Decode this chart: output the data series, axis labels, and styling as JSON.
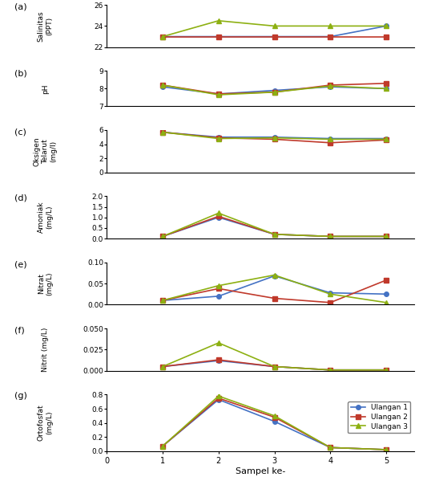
{
  "x": [
    1,
    2,
    3,
    4,
    5
  ],
  "salinitas": {
    "u1": [
      23,
      23,
      23,
      23,
      24
    ],
    "u2": [
      23,
      23,
      23,
      23,
      23
    ],
    "u3": [
      23,
      24.5,
      24,
      24,
      24
    ]
  },
  "pH": {
    "u1": [
      8.1,
      7.7,
      7.9,
      8.1,
      8.0
    ],
    "u2": [
      8.2,
      7.7,
      7.8,
      8.2,
      8.3
    ],
    "u3": [
      8.2,
      7.65,
      7.8,
      8.15,
      8.0
    ]
  },
  "oksigen": {
    "u1": [
      5.7,
      5.0,
      5.0,
      4.8,
      4.8
    ],
    "u2": [
      5.7,
      4.9,
      4.7,
      4.2,
      4.6
    ],
    "u3": [
      5.7,
      4.8,
      4.9,
      4.7,
      4.7
    ]
  },
  "amoniak": {
    "u1": [
      0.1,
      1.0,
      0.2,
      0.1,
      0.1
    ],
    "u2": [
      0.1,
      1.05,
      0.2,
      0.1,
      0.1
    ],
    "u3": [
      0.1,
      1.2,
      0.2,
      0.1,
      0.1
    ]
  },
  "nitrat": {
    "u1": [
      0.01,
      0.02,
      0.068,
      0.028,
      0.025
    ],
    "u2": [
      0.01,
      0.038,
      0.015,
      0.005,
      0.058
    ],
    "u3": [
      0.01,
      0.045,
      0.07,
      0.025,
      0.005
    ]
  },
  "nitrit": {
    "u1": [
      0.005,
      0.012,
      0.005,
      0.001,
      0.001
    ],
    "u2": [
      0.005,
      0.013,
      0.005,
      0.001,
      0.001
    ],
    "u3": [
      0.005,
      0.033,
      0.005,
      0.001,
      0.001
    ]
  },
  "ortofosfat": {
    "u1": [
      0.07,
      0.73,
      0.42,
      0.05,
      0.02
    ],
    "u2": [
      0.07,
      0.75,
      0.48,
      0.05,
      0.02
    ],
    "u3": [
      0.07,
      0.78,
      0.5,
      0.05,
      0.02
    ]
  },
  "colors": {
    "u1": "#4472c4",
    "u2": "#c0392b",
    "u3": "#8db012"
  },
  "markers": {
    "u1": "o",
    "u2": "s",
    "u3": "^"
  },
  "legend_labels": [
    "Ulangan 1",
    "Ulangan 2",
    "Ulangan 3"
  ],
  "xlabel": "Sampel ke-",
  "ylabels": {
    "a": "Salinitas\n(PPT)",
    "b": "pH",
    "c": "Oksigen\nTelarut\n(mg/l)",
    "d": "Amoniak\n(mg/L)",
    "e": "Nitrat\n(mg/L)",
    "f": "Nitrit (mg/L)",
    "g": "Ortofosfat\n(mg/L)"
  },
  "ylims": {
    "a": [
      22,
      26
    ],
    "b": [
      7,
      9
    ],
    "c": [
      0,
      6
    ],
    "d": [
      0,
      2
    ],
    "e": [
      0,
      0.1
    ],
    "f": [
      0,
      0.05
    ],
    "g": [
      0,
      0.8
    ]
  },
  "yticks": {
    "a": [
      22,
      24,
      26
    ],
    "b": [
      7,
      8,
      9
    ],
    "c": [
      0,
      2,
      4,
      6
    ],
    "d": [
      0,
      0.5,
      1.0,
      1.5,
      2.0
    ],
    "e": [
      0,
      0.05,
      0.1
    ],
    "f": [
      0,
      0.025,
      0.05
    ],
    "g": [
      0,
      0.2,
      0.4,
      0.6,
      0.8
    ]
  },
  "panel_labels": [
    "(a)",
    "(b)",
    "(c)",
    "(d)",
    "(e)",
    "(f)",
    "(g)"
  ],
  "height_ratios": [
    3,
    2.5,
    3,
    3,
    3,
    3,
    4
  ]
}
